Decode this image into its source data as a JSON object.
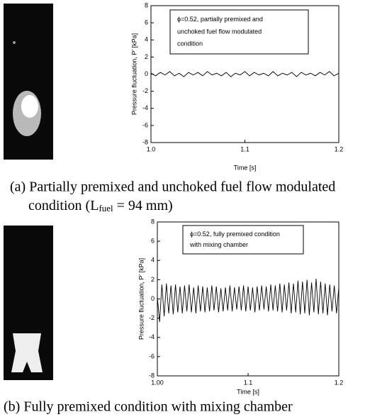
{
  "chart_data": [
    {
      "type": "line",
      "annotation": [
        "ϕ=0.52, partially premixed and",
        "unchoked fuel flow modulated",
        "condition"
      ],
      "xlabel": "Time [s]",
      "ylabel": "Pressure fluctuation, P' [kPa]",
      "xlim": [
        1,
        1.2
      ],
      "xticks": [
        {
          "value": 1,
          "label": "1.0"
        },
        1.1,
        1.2
      ],
      "ylim": [
        -8,
        8
      ],
      "yticks": [
        -8,
        -6,
        -4,
        -2,
        0,
        2,
        4,
        6,
        8
      ],
      "x": [
        1,
        1.005,
        1.01,
        1.015,
        1.02,
        1.025,
        1.03,
        1.035,
        1.04,
        1.045,
        1.05,
        1.055,
        1.06,
        1.065,
        1.07,
        1.075,
        1.08,
        1.085,
        1.09,
        1.095,
        1.1,
        1.105,
        1.11,
        1.115,
        1.12,
        1.125,
        1.13,
        1.135,
        1.14,
        1.145,
        1.15,
        1.155,
        1.16,
        1.165,
        1.17,
        1.175,
        1.18,
        1.185,
        1.19,
        1.195,
        1.2
      ],
      "series": [
        {
          "color": "#000000",
          "values": [
            0.1,
            -0.2,
            0.2,
            -0.1,
            0.3,
            -0.2,
            0.1,
            -0.3,
            0.2,
            -0.1,
            0.2,
            -0.2,
            0.3,
            -0.1,
            0.1,
            -0.2,
            0.2,
            -0.3,
            0.1,
            -0.1,
            0.3,
            -0.2,
            0.2,
            -0.1,
            0.1,
            -0.2,
            0.3,
            -0.2,
            0.1,
            -0.1,
            0.2,
            -0.3,
            0.2,
            -0.1,
            0.1,
            -0.2,
            0.2,
            -0.1,
            0.3,
            -0.2,
            0.1
          ]
        }
      ]
    },
    {
      "type": "line",
      "annotation": [
        "ϕ=0.52, fully premixed condition",
        "with mixing chamber"
      ],
      "xlabel": "Time [s]",
      "ylabel": "Pressure fluctuation, P' [kPa]",
      "xlim": [
        1,
        1.2
      ],
      "xticks": [
        {
          "value": 1,
          "label": "1.00"
        },
        1.1,
        1.2
      ],
      "ylim": [
        -8,
        8
      ],
      "yticks": [
        -8,
        -6,
        -4,
        -2,
        0,
        2,
        4,
        6,
        8
      ],
      "x": [
        1,
        1.0025,
        1.005,
        1.0075,
        1.01,
        1.0125,
        1.015,
        1.0175,
        1.02,
        1.0225,
        1.025,
        1.0275,
        1.03,
        1.0325,
        1.035,
        1.0375,
        1.04,
        1.0425,
        1.045,
        1.0475,
        1.05,
        1.0525,
        1.055,
        1.0575,
        1.06,
        1.0625,
        1.065,
        1.0675,
        1.07,
        1.0725,
        1.075,
        1.0775,
        1.08,
        1.0825,
        1.085,
        1.0875,
        1.09,
        1.0925,
        1.095,
        1.0975,
        1.1,
        1.1025,
        1.105,
        1.1075,
        1.11,
        1.1125,
        1.115,
        1.1175,
        1.12,
        1.1225,
        1.125,
        1.1275,
        1.13,
        1.1325,
        1.135,
        1.1375,
        1.14,
        1.1425,
        1.145,
        1.1475,
        1.15,
        1.1525,
        1.155,
        1.1575,
        1.16,
        1.1625,
        1.165,
        1.1675,
        1.17,
        1.1725,
        1.175,
        1.1775,
        1.18,
        1.1825,
        1.185,
        1.1875,
        1.19,
        1.1925,
        1.195,
        1.1975,
        1.2
      ],
      "series": [
        {
          "color": "#000000",
          "values": [
            0.2,
            -2.4,
            1.5,
            -1.8,
            1.6,
            -1.5,
            1.4,
            -1.6,
            1.5,
            -1.4,
            1.3,
            -1.5,
            1.4,
            -1.3,
            1.5,
            -1.4,
            1.2,
            -1.5,
            1.4,
            -1.3,
            1.3,
            -1.4,
            1.2,
            -1.3,
            1.4,
            -1.2,
            1.3,
            -1.4,
            1.1,
            -1.3,
            1.2,
            -1.2,
            1.4,
            -1.3,
            1.2,
            -1.1,
            1.3,
            -1.2,
            1.4,
            -1.3,
            1.3,
            -1.2,
            1.2,
            -1.4,
            1.3,
            -1.2,
            1.4,
            -1.1,
            1.3,
            -1.3,
            1.5,
            -1.2,
            1.4,
            -1.3,
            1.6,
            -1.4,
            1.5,
            -1.2,
            1.7,
            -1.5,
            1.6,
            -1.4,
            1.9,
            -1.6,
            1.8,
            -1.5,
            2.0,
            -1.7,
            1.7,
            -1.4,
            2.1,
            -1.6,
            1.8,
            -1.5,
            1.6,
            -1.7,
            1.5,
            -1.3,
            1.4,
            -1.5,
            1.2
          ]
        }
      ]
    }
  ],
  "captions": [
    {
      "line1": "(a) Partially premixed and unchoked fuel flow modulated",
      "line2_start": "condition (L",
      "subscript": "fuel",
      "line2_end": " = 94 mm)"
    },
    {
      "line1": "(b) Fully premixed condition with mixing chamber"
    }
  ]
}
